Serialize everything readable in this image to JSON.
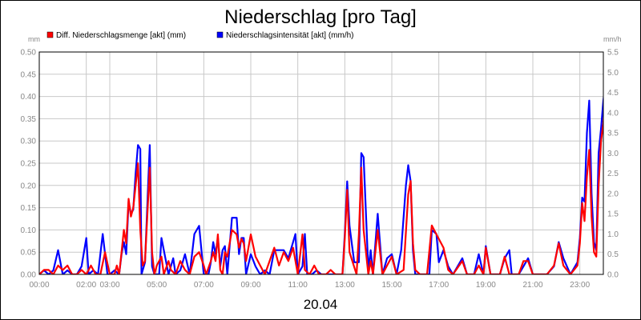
{
  "chart_data": {
    "type": "line",
    "title": "Niederschlag [pro Tag]",
    "xlabel": "20.04",
    "ylabel_left": "mm",
    "ylabel_right": "mm/h",
    "x_ticks": [
      "00:00",
      "02:00",
      "03:00",
      "05:00",
      "07:00",
      "09:00",
      "11:00",
      "13:00",
      "15:00",
      "17:00",
      "19:00",
      "21:00",
      "23:00"
    ],
    "x_range_hours": [
      0,
      24
    ],
    "y_left": {
      "range": [
        0,
        0.5
      ],
      "ticks": [
        "0.00",
        "0.05",
        "0.10",
        "0.15",
        "0.20",
        "0.25",
        "0.30",
        "0.35",
        "0.40",
        "0.45",
        "0.50"
      ]
    },
    "y_right": {
      "range": [
        0,
        5.5
      ],
      "ticks": [
        "0.0",
        "0.5",
        "1.0",
        "1.5",
        "2.0",
        "2.5",
        "3.0",
        "3.5",
        "4.0",
        "4.5",
        "5.0",
        "5.5"
      ]
    },
    "grid": true,
    "legend_placement": "top-left",
    "series": [
      {
        "name": "Diff. Niederschlagsmenge [akt] (mm)",
        "axis": "left",
        "color": "#ff0000",
        "points": [
          [
            0,
            0
          ],
          [
            0.2,
            0.01
          ],
          [
            0.4,
            0.01
          ],
          [
            0.6,
            0.0
          ],
          [
            0.8,
            0.02
          ],
          [
            1.0,
            0.01
          ],
          [
            1.2,
            0.02
          ],
          [
            1.4,
            0.0
          ],
          [
            1.6,
            0.0
          ],
          [
            1.8,
            0.01
          ],
          [
            2.0,
            0.0
          ],
          [
            2.2,
            0.02
          ],
          [
            2.4,
            0.0
          ],
          [
            2.6,
            0.0
          ],
          [
            2.8,
            0.05
          ],
          [
            3.0,
            0.0
          ],
          [
            3.2,
            0.0
          ],
          [
            3.3,
            0.02
          ],
          [
            3.4,
            0.0
          ],
          [
            3.5,
            0.05
          ],
          [
            3.6,
            0.1
          ],
          [
            3.7,
            0.07
          ],
          [
            3.8,
            0.17
          ],
          [
            3.9,
            0.13
          ],
          [
            4.0,
            0.15
          ],
          [
            4.1,
            0.2
          ],
          [
            4.2,
            0.25
          ],
          [
            4.3,
            0.1
          ],
          [
            4.4,
            0.02
          ],
          [
            4.5,
            0.03
          ],
          [
            4.7,
            0.24
          ],
          [
            4.8,
            0.05
          ],
          [
            4.9,
            0.0
          ],
          [
            5.0,
            0.02
          ],
          [
            5.2,
            0.04
          ],
          [
            5.3,
            0.0
          ],
          [
            5.5,
            0.03
          ],
          [
            5.6,
            0.01
          ],
          [
            5.8,
            0.0
          ],
          [
            6.0,
            0.03
          ],
          [
            6.2,
            0.01
          ],
          [
            6.4,
            0.0
          ],
          [
            6.6,
            0.04
          ],
          [
            6.8,
            0.05
          ],
          [
            7.0,
            0.02
          ],
          [
            7.1,
            0.0
          ],
          [
            7.3,
            0.03
          ],
          [
            7.4,
            0.05
          ],
          [
            7.5,
            0.03
          ],
          [
            7.6,
            0.09
          ],
          [
            7.7,
            0.01
          ],
          [
            7.8,
            0.0
          ],
          [
            7.9,
            0.05
          ],
          [
            8.0,
            0.04
          ],
          [
            8.2,
            0.1
          ],
          [
            8.4,
            0.09
          ],
          [
            8.5,
            0.06
          ],
          [
            8.6,
            0.08
          ],
          [
            8.7,
            0.07
          ],
          [
            8.8,
            0.03
          ],
          [
            9.0,
            0.09
          ],
          [
            9.2,
            0.04
          ],
          [
            9.4,
            0.02
          ],
          [
            9.6,
            0.0
          ],
          [
            9.8,
            0.03
          ],
          [
            10.0,
            0.06
          ],
          [
            10.2,
            0.02
          ],
          [
            10.4,
            0.05
          ],
          [
            10.6,
            0.03
          ],
          [
            10.8,
            0.06
          ],
          [
            11.0,
            0.0
          ],
          [
            11.2,
            0.09
          ],
          [
            11.3,
            0.01
          ],
          [
            11.5,
            0.0
          ],
          [
            11.7,
            0.02
          ],
          [
            11.9,
            0.0
          ],
          [
            12.2,
            0.0
          ],
          [
            12.4,
            0.01
          ],
          [
            12.6,
            0.0
          ],
          [
            12.9,
            0.0
          ],
          [
            13.0,
            0.08
          ],
          [
            13.1,
            0.19
          ],
          [
            13.2,
            0.05
          ],
          [
            13.5,
            0.0
          ],
          [
            13.6,
            0.09
          ],
          [
            13.7,
            0.24
          ],
          [
            13.8,
            0.1
          ],
          [
            14.0,
            0.0
          ],
          [
            14.1,
            0.03
          ],
          [
            14.2,
            0.0
          ],
          [
            14.4,
            0.1
          ],
          [
            14.6,
            0.0
          ],
          [
            14.8,
            0.02
          ],
          [
            15.0,
            0.04
          ],
          [
            15.2,
            0.0
          ],
          [
            15.5,
            0.01
          ],
          [
            15.7,
            0.18
          ],
          [
            15.8,
            0.21
          ],
          [
            15.9,
            0.07
          ],
          [
            16.0,
            0.01
          ],
          [
            16.2,
            0.0
          ],
          [
            16.5,
            0.0
          ],
          [
            16.7,
            0.11
          ],
          [
            16.9,
            0.09
          ],
          [
            17.2,
            0.06
          ],
          [
            17.4,
            0.01
          ],
          [
            17.6,
            0.0
          ],
          [
            18.0,
            0.03
          ],
          [
            18.2,
            0.0
          ],
          [
            18.5,
            0.0
          ],
          [
            18.7,
            0.02
          ],
          [
            18.9,
            0.0
          ],
          [
            19.0,
            0.06
          ],
          [
            19.2,
            0.0
          ],
          [
            19.6,
            0.0
          ],
          [
            19.8,
            0.04
          ],
          [
            20.0,
            0.0
          ],
          [
            20.4,
            0.0
          ],
          [
            20.6,
            0.03
          ],
          [
            20.8,
            0.03
          ],
          [
            21.0,
            0.0
          ],
          [
            21.6,
            0.0
          ],
          [
            21.9,
            0.02
          ],
          [
            22.1,
            0.07
          ],
          [
            22.3,
            0.02
          ],
          [
            22.6,
            0.0
          ],
          [
            22.9,
            0.02
          ],
          [
            23.0,
            0.07
          ],
          [
            23.1,
            0.16
          ],
          [
            23.2,
            0.12
          ],
          [
            23.3,
            0.22
          ],
          [
            23.4,
            0.28
          ],
          [
            23.5,
            0.13
          ],
          [
            23.6,
            0.05
          ],
          [
            23.7,
            0.04
          ],
          [
            23.8,
            0.2
          ],
          [
            23.9,
            0.3
          ],
          [
            24.0,
            0.34
          ],
          [
            24.1,
            0.42
          ]
        ]
      },
      {
        "name": "Niederschlagsintensität [akt] (mm/h)",
        "axis": "right",
        "color": "#0000ff",
        "points": [
          [
            0,
            0
          ],
          [
            0.2,
            0.1
          ],
          [
            0.4,
            0.0
          ],
          [
            0.6,
            0.1
          ],
          [
            0.8,
            0.6
          ],
          [
            1.0,
            0.0
          ],
          [
            1.2,
            0.1
          ],
          [
            1.4,
            0.0
          ],
          [
            1.6,
            0.0
          ],
          [
            1.8,
            0.2
          ],
          [
            2.0,
            0.9
          ],
          [
            2.1,
            0.0
          ],
          [
            2.3,
            0.1
          ],
          [
            2.5,
            0.0
          ],
          [
            2.7,
            1.0
          ],
          [
            2.9,
            0.0
          ],
          [
            3.0,
            0.0
          ],
          [
            3.2,
            0.1
          ],
          [
            3.4,
            0.0
          ],
          [
            3.5,
            0.5
          ],
          [
            3.6,
            0.8
          ],
          [
            3.7,
            0.5
          ],
          [
            3.8,
            1.8
          ],
          [
            3.9,
            1.5
          ],
          [
            4.0,
            1.6
          ],
          [
            4.1,
            2.5
          ],
          [
            4.2,
            3.2
          ],
          [
            4.3,
            3.1
          ],
          [
            4.35,
            0.0
          ],
          [
            4.5,
            0.3
          ],
          [
            4.7,
            3.2
          ],
          [
            4.8,
            0.2
          ],
          [
            4.9,
            0.0
          ],
          [
            5.1,
            0.0
          ],
          [
            5.2,
            0.9
          ],
          [
            5.4,
            0.3
          ],
          [
            5.5,
            0.0
          ],
          [
            5.7,
            0.4
          ],
          [
            5.8,
            0.0
          ],
          [
            6.0,
            0.1
          ],
          [
            6.2,
            0.5
          ],
          [
            6.4,
            0.0
          ],
          [
            6.6,
            1.0
          ],
          [
            6.8,
            1.2
          ],
          [
            7.0,
            0.0
          ],
          [
            7.2,
            0.0
          ],
          [
            7.3,
            0.3
          ],
          [
            7.4,
            0.8
          ],
          [
            7.5,
            0.5
          ],
          [
            7.6,
            0.9
          ],
          [
            7.7,
            0.2
          ],
          [
            7.8,
            0.6
          ],
          [
            7.9,
            0.7
          ],
          [
            8.0,
            0.0
          ],
          [
            8.2,
            1.4
          ],
          [
            8.4,
            1.4
          ],
          [
            8.5,
            0.5
          ],
          [
            8.6,
            0.9
          ],
          [
            8.7,
            0.9
          ],
          [
            8.8,
            0.0
          ],
          [
            9.0,
            0.5
          ],
          [
            9.2,
            0.2
          ],
          [
            9.4,
            0.0
          ],
          [
            9.6,
            0.1
          ],
          [
            9.8,
            0.0
          ],
          [
            10.0,
            0.6
          ],
          [
            10.2,
            0.6
          ],
          [
            10.4,
            0.6
          ],
          [
            10.6,
            0.4
          ],
          [
            10.8,
            0.8
          ],
          [
            10.9,
            1.0
          ],
          [
            11.0,
            0.0
          ],
          [
            11.2,
            0.2
          ],
          [
            11.3,
            1.0
          ],
          [
            11.4,
            0.0
          ],
          [
            11.6,
            0.0
          ],
          [
            11.8,
            0.1
          ],
          [
            12.0,
            0.0
          ],
          [
            12.3,
            0.0
          ],
          [
            12.9,
            0.0
          ],
          [
            13.0,
            1.0
          ],
          [
            13.1,
            2.3
          ],
          [
            13.2,
            1.2
          ],
          [
            13.4,
            0.3
          ],
          [
            13.6,
            0.3
          ],
          [
            13.7,
            3.0
          ],
          [
            13.8,
            2.9
          ],
          [
            14.0,
            0.1
          ],
          [
            14.1,
            0.6
          ],
          [
            14.2,
            0.0
          ],
          [
            14.4,
            1.5
          ],
          [
            14.6,
            0.0
          ],
          [
            14.8,
            0.4
          ],
          [
            15.0,
            0.5
          ],
          [
            15.2,
            0.0
          ],
          [
            15.4,
            0.6
          ],
          [
            15.6,
            2.2
          ],
          [
            15.7,
            2.7
          ],
          [
            15.8,
            2.3
          ],
          [
            15.9,
            0.6
          ],
          [
            16.0,
            0.0
          ],
          [
            16.2,
            0.0
          ],
          [
            16.6,
            0.0
          ],
          [
            16.7,
            1.1
          ],
          [
            16.9,
            1.0
          ],
          [
            17.0,
            0.3
          ],
          [
            17.2,
            0.6
          ],
          [
            17.4,
            0.2
          ],
          [
            17.6,
            0.0
          ],
          [
            18.0,
            0.4
          ],
          [
            18.2,
            0.0
          ],
          [
            18.5,
            0.0
          ],
          [
            18.7,
            0.5
          ],
          [
            18.9,
            0.0
          ],
          [
            19.0,
            0.7
          ],
          [
            19.2,
            0.0
          ],
          [
            19.6,
            0.0
          ],
          [
            19.8,
            0.4
          ],
          [
            20.0,
            0.6
          ],
          [
            20.1,
            0.0
          ],
          [
            20.4,
            0.0
          ],
          [
            20.6,
            0.2
          ],
          [
            20.8,
            0.4
          ],
          [
            21.0,
            0.0
          ],
          [
            21.6,
            0.0
          ],
          [
            21.9,
            0.2
          ],
          [
            22.1,
            0.8
          ],
          [
            22.3,
            0.4
          ],
          [
            22.6,
            0.0
          ],
          [
            22.9,
            0.3
          ],
          [
            23.0,
            0.9
          ],
          [
            23.1,
            1.9
          ],
          [
            23.2,
            1.8
          ],
          [
            23.3,
            3.5
          ],
          [
            23.4,
            4.3
          ],
          [
            23.5,
            2.0
          ],
          [
            23.6,
            0.8
          ],
          [
            23.7,
            0.6
          ],
          [
            23.8,
            3.0
          ],
          [
            23.9,
            3.6
          ],
          [
            24.0,
            4.3
          ],
          [
            24.1,
            4.8
          ]
        ]
      }
    ]
  }
}
